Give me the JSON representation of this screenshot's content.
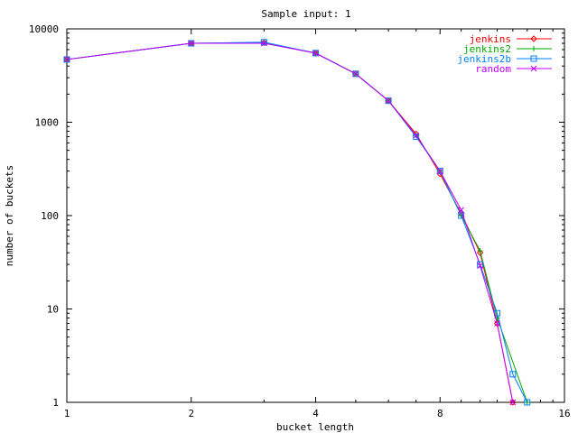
{
  "chart_data": {
    "type": "line",
    "title": "Sample input: 1",
    "xlabel": "bucket length",
    "ylabel": "number of buckets",
    "xscale": "log2",
    "yscale": "log10",
    "xlim": [
      1,
      16
    ],
    "ylim": [
      1,
      10000
    ],
    "grid": false,
    "legend_position": "top-right",
    "xticks": [
      {
        "value": 1,
        "label": "1"
      },
      {
        "value": 2,
        "label": "2"
      },
      {
        "value": 4,
        "label": "4"
      },
      {
        "value": 8,
        "label": "8"
      },
      {
        "value": 16,
        "label": "16"
      }
    ],
    "yticks": [
      {
        "value": 1,
        "label": "1"
      },
      {
        "value": 10,
        "label": "10"
      },
      {
        "value": 100,
        "label": "100"
      },
      {
        "value": 1000,
        "label": "1000"
      },
      {
        "value": 10000,
        "label": "10000"
      }
    ],
    "x": [
      1,
      2,
      3,
      4,
      5,
      6,
      7,
      8,
      9,
      10,
      11,
      12,
      13
    ],
    "series": [
      {
        "name": "jenkins",
        "color": "#ff0000",
        "marker": "diamond",
        "values": [
          4700,
          7000,
          7100,
          5500,
          3300,
          1700,
          750,
          280,
          105,
          40,
          7,
          1,
          null
        ]
      },
      {
        "name": "jenkins2",
        "color": "#00aa00",
        "marker": "plus",
        "values": [
          4700,
          7000,
          7100,
          5500,
          3300,
          1700,
          720,
          300,
          100,
          42,
          8,
          null,
          1
        ]
      },
      {
        "name": "jenkins2b",
        "color": "#0080ff",
        "marker": "square",
        "values": [
          4700,
          7000,
          7200,
          5500,
          3300,
          1700,
          700,
          300,
          100,
          30,
          9,
          2,
          1
        ]
      },
      {
        "name": "random",
        "color": "#c000ff",
        "marker": "x",
        "values": [
          4700,
          7000,
          7000,
          5500,
          3300,
          1700,
          720,
          300,
          115,
          29,
          7,
          1,
          null
        ]
      }
    ]
  }
}
